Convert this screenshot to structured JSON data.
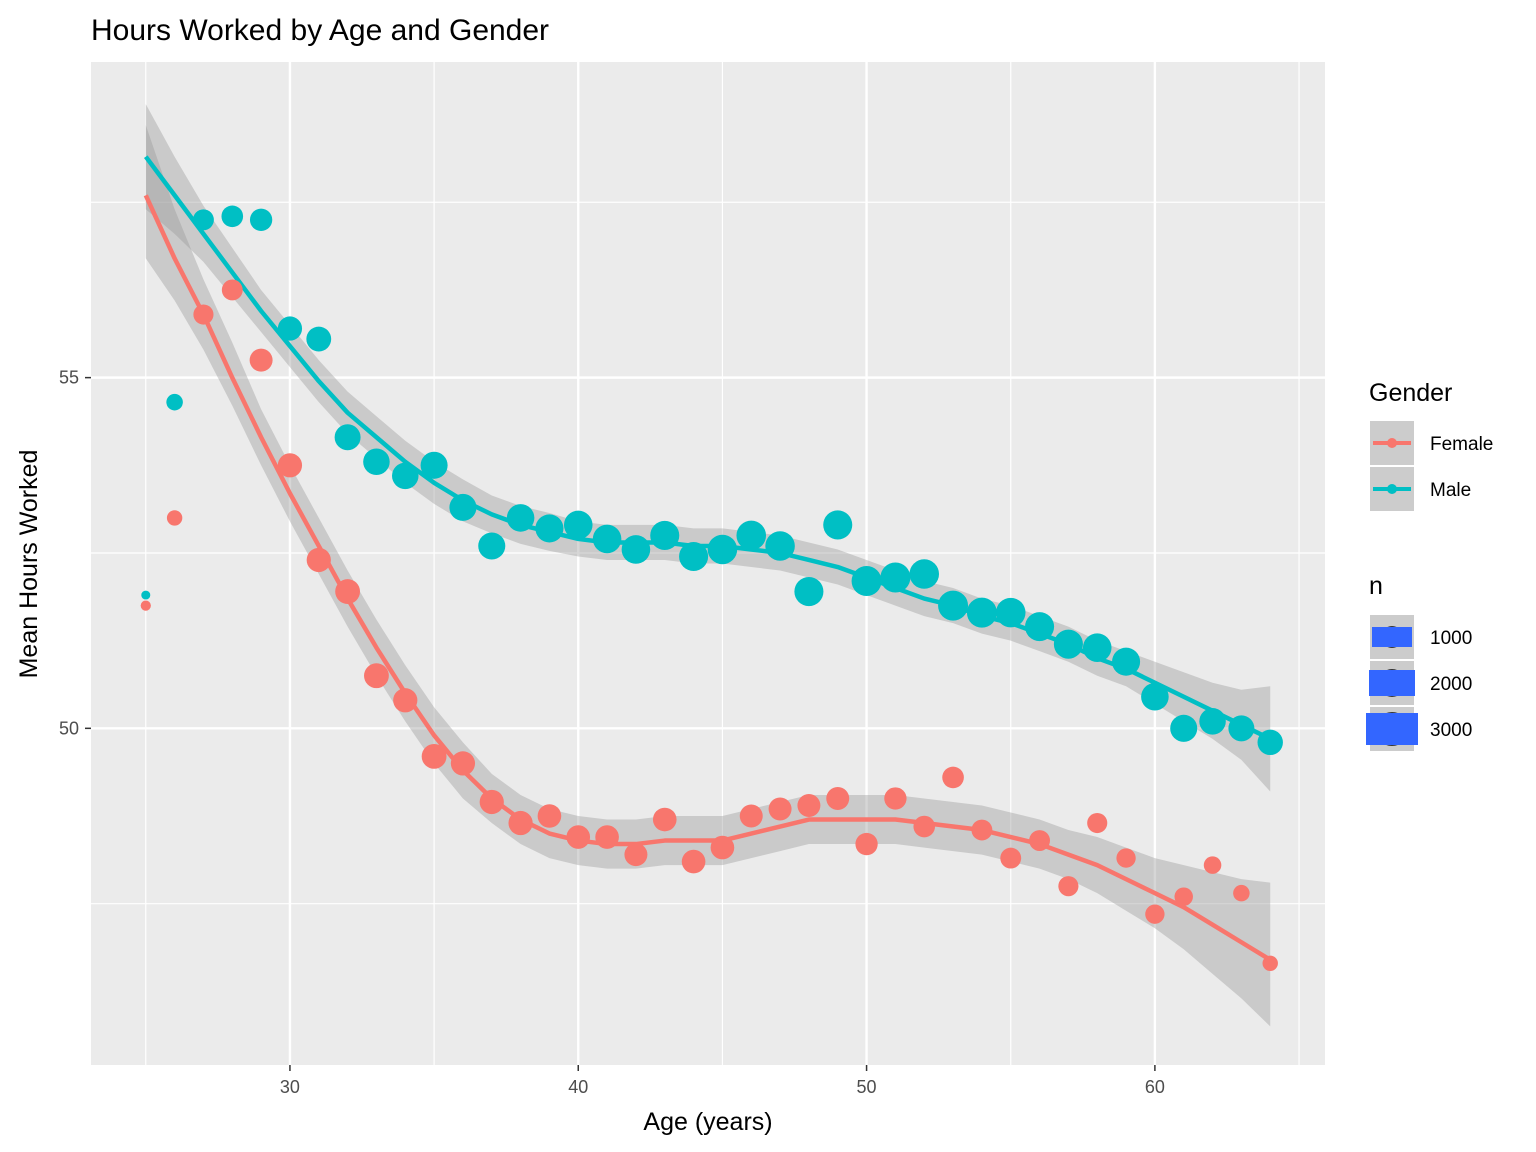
{
  "chart_data": {
    "type": "scatter",
    "title": "Hours Worked by Age and Gender",
    "xlabel": "Age (years)",
    "ylabel": "Mean Hours Worked",
    "xlim": [
      23.1,
      65.9
    ],
    "ylim": [
      45.2,
      59.5
    ],
    "x_ticks": [
      30,
      40,
      50,
      60
    ],
    "y_ticks": [
      50,
      55
    ],
    "x_minor_ticks": [
      25,
      35,
      45,
      55,
      65
    ],
    "y_minor_ticks": [
      47.5,
      52.5,
      57.5
    ],
    "grid": true,
    "legend_placement": "right",
    "colors": {
      "Female": "#F8766D",
      "Male": "#00BFC4",
      "band": "#999999",
      "panel": "#EBEBEB",
      "size_key": "#3366FF"
    },
    "series": [
      {
        "name": "Female",
        "points": [
          {
            "x": 25,
            "y": 51.75,
            "n": 80
          },
          {
            "x": 26,
            "y": 53.0,
            "n": 400
          },
          {
            "x": 27,
            "y": 55.9,
            "n": 900
          },
          {
            "x": 28,
            "y": 56.25,
            "n": 1000
          },
          {
            "x": 29,
            "y": 55.25,
            "n": 1300
          },
          {
            "x": 30,
            "y": 53.75,
            "n": 1500
          },
          {
            "x": 31,
            "y": 52.4,
            "n": 1500
          },
          {
            "x": 32,
            "y": 51.95,
            "n": 1600
          },
          {
            "x": 33,
            "y": 50.75,
            "n": 1600
          },
          {
            "x": 34,
            "y": 50.4,
            "n": 1500
          },
          {
            "x": 35,
            "y": 49.6,
            "n": 1600
          },
          {
            "x": 36,
            "y": 49.5,
            "n": 1500
          },
          {
            "x": 37,
            "y": 48.95,
            "n": 1500
          },
          {
            "x": 38,
            "y": 48.65,
            "n": 1500
          },
          {
            "x": 39,
            "y": 48.75,
            "n": 1400
          },
          {
            "x": 40,
            "y": 48.45,
            "n": 1400
          },
          {
            "x": 41,
            "y": 48.45,
            "n": 1400
          },
          {
            "x": 42,
            "y": 48.2,
            "n": 1300
          },
          {
            "x": 43,
            "y": 48.7,
            "n": 1400
          },
          {
            "x": 44,
            "y": 48.1,
            "n": 1400
          },
          {
            "x": 45,
            "y": 48.3,
            "n": 1400
          },
          {
            "x": 46,
            "y": 48.75,
            "n": 1300
          },
          {
            "x": 47,
            "y": 48.85,
            "n": 1300
          },
          {
            "x": 48,
            "y": 48.9,
            "n": 1300
          },
          {
            "x": 49,
            "y": 49.0,
            "n": 1300
          },
          {
            "x": 50,
            "y": 48.35,
            "n": 1200
          },
          {
            "x": 51,
            "y": 49.0,
            "n": 1200
          },
          {
            "x": 52,
            "y": 48.6,
            "n": 1100
          },
          {
            "x": 53,
            "y": 49.3,
            "n": 1100
          },
          {
            "x": 54,
            "y": 48.55,
            "n": 1000
          },
          {
            "x": 55,
            "y": 48.15,
            "n": 1000
          },
          {
            "x": 56,
            "y": 48.4,
            "n": 1000
          },
          {
            "x": 57,
            "y": 47.75,
            "n": 900
          },
          {
            "x": 58,
            "y": 48.65,
            "n": 900
          },
          {
            "x": 59,
            "y": 48.15,
            "n": 800
          },
          {
            "x": 60,
            "y": 47.35,
            "n": 800
          },
          {
            "x": 61,
            "y": 47.6,
            "n": 700
          },
          {
            "x": 62,
            "y": 48.05,
            "n": 600
          },
          {
            "x": 63,
            "y": 47.65,
            "n": 500
          },
          {
            "x": 64,
            "y": 46.65,
            "n": 400
          }
        ],
        "smooth": [
          {
            "x": 25,
            "y": 57.6,
            "lo": 56.7,
            "hi": 58.6
          },
          {
            "x": 26,
            "y": 56.7,
            "lo": 56.1,
            "hi": 57.4
          },
          {
            "x": 27,
            "y": 55.9,
            "lo": 55.4,
            "hi": 56.4
          },
          {
            "x": 28,
            "y": 55.0,
            "lo": 54.6,
            "hi": 55.5
          },
          {
            "x": 29,
            "y": 54.15,
            "lo": 53.75,
            "hi": 54.55
          },
          {
            "x": 30,
            "y": 53.35,
            "lo": 52.95,
            "hi": 53.75
          },
          {
            "x": 31,
            "y": 52.6,
            "lo": 52.2,
            "hi": 53.0
          },
          {
            "x": 32,
            "y": 51.85,
            "lo": 51.45,
            "hi": 52.25
          },
          {
            "x": 33,
            "y": 51.15,
            "lo": 50.75,
            "hi": 51.55
          },
          {
            "x": 34,
            "y": 50.5,
            "lo": 50.1,
            "hi": 50.9
          },
          {
            "x": 35,
            "y": 49.9,
            "lo": 49.5,
            "hi": 50.3
          },
          {
            "x": 36,
            "y": 49.4,
            "lo": 49.0,
            "hi": 49.8
          },
          {
            "x": 37,
            "y": 49.0,
            "lo": 48.65,
            "hi": 49.35
          },
          {
            "x": 38,
            "y": 48.7,
            "lo": 48.35,
            "hi": 49.05
          },
          {
            "x": 39,
            "y": 48.5,
            "lo": 48.15,
            "hi": 48.85
          },
          {
            "x": 40,
            "y": 48.4,
            "lo": 48.05,
            "hi": 48.75
          },
          {
            "x": 41,
            "y": 48.35,
            "lo": 48.0,
            "hi": 48.7
          },
          {
            "x": 42,
            "y": 48.35,
            "lo": 48.0,
            "hi": 48.7
          },
          {
            "x": 43,
            "y": 48.4,
            "lo": 48.05,
            "hi": 48.75
          },
          {
            "x": 44,
            "y": 48.4,
            "lo": 48.05,
            "hi": 48.75
          },
          {
            "x": 45,
            "y": 48.4,
            "lo": 48.05,
            "hi": 48.75
          },
          {
            "x": 46,
            "y": 48.5,
            "lo": 48.15,
            "hi": 48.85
          },
          {
            "x": 47,
            "y": 48.6,
            "lo": 48.25,
            "hi": 48.95
          },
          {
            "x": 48,
            "y": 48.7,
            "lo": 48.35,
            "hi": 49.05
          },
          {
            "x": 49,
            "y": 48.7,
            "lo": 48.35,
            "hi": 49.05
          },
          {
            "x": 50,
            "y": 48.7,
            "lo": 48.35,
            "hi": 49.05
          },
          {
            "x": 51,
            "y": 48.7,
            "lo": 48.35,
            "hi": 49.05
          },
          {
            "x": 52,
            "y": 48.65,
            "lo": 48.3,
            "hi": 49.0
          },
          {
            "x": 53,
            "y": 48.6,
            "lo": 48.25,
            "hi": 48.95
          },
          {
            "x": 54,
            "y": 48.55,
            "lo": 48.2,
            "hi": 48.9
          },
          {
            "x": 55,
            "y": 48.45,
            "lo": 48.1,
            "hi": 48.8
          },
          {
            "x": 56,
            "y": 48.35,
            "lo": 48.0,
            "hi": 48.7
          },
          {
            "x": 57,
            "y": 48.2,
            "lo": 47.85,
            "hi": 48.55
          },
          {
            "x": 58,
            "y": 48.05,
            "lo": 47.65,
            "hi": 48.45
          },
          {
            "x": 59,
            "y": 47.85,
            "lo": 47.4,
            "hi": 48.3
          },
          {
            "x": 60,
            "y": 47.65,
            "lo": 47.15,
            "hi": 48.15
          },
          {
            "x": 61,
            "y": 47.45,
            "lo": 46.85,
            "hi": 48.05
          },
          {
            "x": 62,
            "y": 47.2,
            "lo": 46.5,
            "hi": 47.95
          },
          {
            "x": 63,
            "y": 46.95,
            "lo": 46.15,
            "hi": 47.85
          },
          {
            "x": 64,
            "y": 46.7,
            "lo": 45.75,
            "hi": 47.8
          }
        ]
      },
      {
        "name": "Male",
        "points": [
          {
            "x": 25,
            "y": 51.9,
            "n": 40
          },
          {
            "x": 26,
            "y": 54.65,
            "n": 500
          },
          {
            "x": 27,
            "y": 57.25,
            "n": 1000
          },
          {
            "x": 28,
            "y": 57.3,
            "n": 1100
          },
          {
            "x": 29,
            "y": 57.25,
            "n": 1200
          },
          {
            "x": 30,
            "y": 55.7,
            "n": 1500
          },
          {
            "x": 31,
            "y": 55.55,
            "n": 1600
          },
          {
            "x": 32,
            "y": 54.15,
            "n": 1800
          },
          {
            "x": 33,
            "y": 53.8,
            "n": 1900
          },
          {
            "x": 34,
            "y": 53.6,
            "n": 1900
          },
          {
            "x": 35,
            "y": 53.75,
            "n": 2000
          },
          {
            "x": 36,
            "y": 53.15,
            "n": 2000
          },
          {
            "x": 37,
            "y": 52.6,
            "n": 2000
          },
          {
            "x": 38,
            "y": 53.0,
            "n": 2100
          },
          {
            "x": 39,
            "y": 52.85,
            "n": 2200
          },
          {
            "x": 40,
            "y": 52.9,
            "n": 2300
          },
          {
            "x": 41,
            "y": 52.7,
            "n": 2300
          },
          {
            "x": 42,
            "y": 52.55,
            "n": 2300
          },
          {
            "x": 43,
            "y": 52.75,
            "n": 2400
          },
          {
            "x": 44,
            "y": 52.45,
            "n": 2400
          },
          {
            "x": 45,
            "y": 52.55,
            "n": 2500
          },
          {
            "x": 46,
            "y": 52.75,
            "n": 2500
          },
          {
            "x": 47,
            "y": 52.6,
            "n": 2500
          },
          {
            "x": 48,
            "y": 51.95,
            "n": 2400
          },
          {
            "x": 49,
            "y": 52.9,
            "n": 2400
          },
          {
            "x": 50,
            "y": 52.1,
            "n": 2600
          },
          {
            "x": 51,
            "y": 52.15,
            "n": 2600
          },
          {
            "x": 52,
            "y": 52.2,
            "n": 2500
          },
          {
            "x": 53,
            "y": 51.75,
            "n": 2600
          },
          {
            "x": 54,
            "y": 51.65,
            "n": 2600
          },
          {
            "x": 55,
            "y": 51.65,
            "n": 2500
          },
          {
            "x": 56,
            "y": 51.45,
            "n": 2400
          },
          {
            "x": 57,
            "y": 51.2,
            "n": 2400
          },
          {
            "x": 58,
            "y": 51.15,
            "n": 2300
          },
          {
            "x": 59,
            "y": 50.95,
            "n": 2200
          },
          {
            "x": 60,
            "y": 50.45,
            "n": 2100
          },
          {
            "x": 61,
            "y": 50.0,
            "n": 2000
          },
          {
            "x": 62,
            "y": 50.1,
            "n": 1900
          },
          {
            "x": 63,
            "y": 50.0,
            "n": 1800
          },
          {
            "x": 64,
            "y": 49.8,
            "n": 1700
          }
        ],
        "smooth": [
          {
            "x": 25,
            "y": 58.15,
            "lo": 57.4,
            "hi": 58.9
          },
          {
            "x": 26,
            "y": 57.6,
            "lo": 57.05,
            "hi": 58.15
          },
          {
            "x": 27,
            "y": 57.05,
            "lo": 56.65,
            "hi": 57.45
          },
          {
            "x": 28,
            "y": 56.5,
            "lo": 56.15,
            "hi": 56.85
          },
          {
            "x": 29,
            "y": 55.95,
            "lo": 55.65,
            "hi": 56.25
          },
          {
            "x": 30,
            "y": 55.45,
            "lo": 55.15,
            "hi": 55.75
          },
          {
            "x": 31,
            "y": 54.95,
            "lo": 54.65,
            "hi": 55.25
          },
          {
            "x": 32,
            "y": 54.5,
            "lo": 54.2,
            "hi": 54.8
          },
          {
            "x": 33,
            "y": 54.15,
            "lo": 53.85,
            "hi": 54.45
          },
          {
            "x": 34,
            "y": 53.8,
            "lo": 53.5,
            "hi": 54.1
          },
          {
            "x": 35,
            "y": 53.5,
            "lo": 53.2,
            "hi": 53.8
          },
          {
            "x": 36,
            "y": 53.25,
            "lo": 52.95,
            "hi": 53.55
          },
          {
            "x": 37,
            "y": 53.05,
            "lo": 52.78,
            "hi": 53.32
          },
          {
            "x": 38,
            "y": 52.9,
            "lo": 52.63,
            "hi": 53.17
          },
          {
            "x": 39,
            "y": 52.8,
            "lo": 52.53,
            "hi": 53.07
          },
          {
            "x": 40,
            "y": 52.7,
            "lo": 52.45,
            "hi": 52.95
          },
          {
            "x": 41,
            "y": 52.65,
            "lo": 52.4,
            "hi": 52.9
          },
          {
            "x": 42,
            "y": 52.65,
            "lo": 52.4,
            "hi": 52.9
          },
          {
            "x": 43,
            "y": 52.65,
            "lo": 52.4,
            "hi": 52.9
          },
          {
            "x": 44,
            "y": 52.6,
            "lo": 52.35,
            "hi": 52.85
          },
          {
            "x": 45,
            "y": 52.6,
            "lo": 52.35,
            "hi": 52.85
          },
          {
            "x": 46,
            "y": 52.55,
            "lo": 52.3,
            "hi": 52.8
          },
          {
            "x": 47,
            "y": 52.5,
            "lo": 52.25,
            "hi": 52.75
          },
          {
            "x": 48,
            "y": 52.4,
            "lo": 52.15,
            "hi": 52.65
          },
          {
            "x": 49,
            "y": 52.3,
            "lo": 52.05,
            "hi": 52.55
          },
          {
            "x": 50,
            "y": 52.15,
            "lo": 51.9,
            "hi": 52.4
          },
          {
            "x": 51,
            "y": 52.0,
            "lo": 51.75,
            "hi": 52.25
          },
          {
            "x": 52,
            "y": 51.85,
            "lo": 51.6,
            "hi": 52.1
          },
          {
            "x": 53,
            "y": 51.75,
            "lo": 51.5,
            "hi": 52.0
          },
          {
            "x": 54,
            "y": 51.6,
            "lo": 51.35,
            "hi": 51.85
          },
          {
            "x": 55,
            "y": 51.5,
            "lo": 51.25,
            "hi": 51.75
          },
          {
            "x": 56,
            "y": 51.35,
            "lo": 51.1,
            "hi": 51.6
          },
          {
            "x": 57,
            "y": 51.2,
            "lo": 50.95,
            "hi": 51.45
          },
          {
            "x": 58,
            "y": 51.0,
            "lo": 50.75,
            "hi": 51.25
          },
          {
            "x": 59,
            "y": 50.85,
            "lo": 50.6,
            "hi": 51.1
          },
          {
            "x": 60,
            "y": 50.65,
            "lo": 50.35,
            "hi": 50.95
          },
          {
            "x": 61,
            "y": 50.45,
            "lo": 50.1,
            "hi": 50.8
          },
          {
            "x": 62,
            "y": 50.25,
            "lo": 49.85,
            "hi": 50.65
          },
          {
            "x": 63,
            "y": 50.05,
            "lo": 49.55,
            "hi": 50.55
          },
          {
            "x": 64,
            "y": 49.85,
            "lo": 49.1,
            "hi": 50.6
          }
        ]
      }
    ],
    "legend": {
      "color_title": "Gender",
      "color_entries": [
        "Female",
        "Male"
      ],
      "size_title": "n",
      "size_entries": [
        "1000",
        "2000",
        "3000"
      ]
    }
  }
}
